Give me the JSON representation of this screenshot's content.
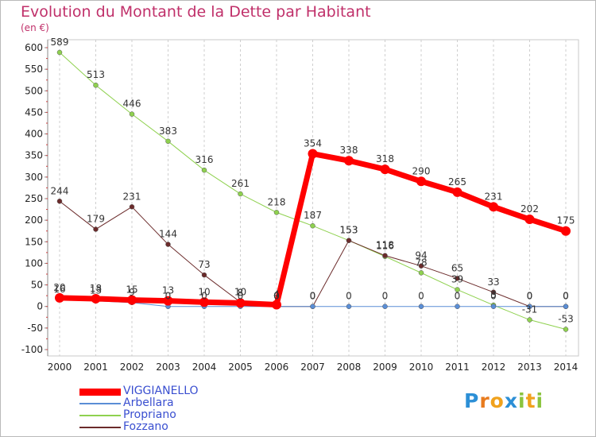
{
  "title": "Evolution du Montant de la Dette par Habitant",
  "unit_label": "(en €)",
  "brand": {
    "letters": [
      {
        "ch": "P",
        "color": "#2c8fd6"
      },
      {
        "ch": "r",
        "color": "#e87b1e"
      },
      {
        "ch": "o",
        "color": "#f0a21d"
      },
      {
        "ch": "x",
        "color": "#2c8fd6"
      },
      {
        "ch": "i",
        "color": "#8bc43f"
      },
      {
        "ch": "t",
        "color": "#f0a21d"
      },
      {
        "ch": "i",
        "color": "#8bc43f"
      }
    ]
  },
  "chart_data": {
    "type": "line",
    "x": [
      "2000",
      "2001",
      "2002",
      "2003",
      "2004",
      "2005",
      "2006",
      "2007",
      "2008",
      "2009",
      "2010",
      "2011",
      "2012",
      "2013",
      "2014"
    ],
    "ylim": [
      -100,
      600
    ],
    "yticks": [
      -100,
      -50,
      0,
      50,
      100,
      150,
      200,
      250,
      300,
      350,
      400,
      450,
      500,
      550,
      600
    ],
    "grid": {
      "horizontal": false,
      "vertical": true
    },
    "legend_position": "bottom-left",
    "series": [
      {
        "name": "Propriano",
        "color": "#8fd14f",
        "width": 1,
        "marker": 3,
        "values": [
          589,
          513,
          446,
          383,
          316,
          261,
          218,
          187,
          153,
          116,
          78,
          39,
          3,
          -31,
          -53
        ],
        "labels": [
          "589",
          "513",
          "446",
          "383",
          "316",
          "261",
          "218",
          "187",
          "153",
          "116",
          "78",
          "39",
          "3",
          "-31",
          "-53"
        ]
      },
      {
        "name": "Fozzano",
        "color": "#6b2b2b",
        "width": 1,
        "marker": 3,
        "values": [
          244,
          179,
          231,
          144,
          73,
          10,
          0,
          0,
          153,
          118,
          94,
          65,
          33,
          0,
          0
        ],
        "labels": [
          "244",
          "179",
          "231",
          "144",
          "73",
          "10",
          "0",
          "0",
          "153",
          "118",
          "94",
          "65",
          "33",
          "0",
          "0"
        ]
      },
      {
        "name": "Arbellara",
        "color": "#5a8ed6",
        "width": 1,
        "marker": 3,
        "values": [
          16,
          13,
          9,
          0,
          0,
          0,
          0,
          0,
          0,
          0,
          0,
          0,
          0,
          0,
          0
        ],
        "labels": [
          "16",
          "13",
          "9",
          "0",
          "0",
          "0",
          "0",
          "0",
          "0",
          "0",
          "0",
          "0",
          "0",
          "0",
          "0"
        ]
      },
      {
        "name": "VIGGIANELLO",
        "color": "#ff0000",
        "width": 7,
        "marker": 6,
        "values": [
          20,
          18,
          15,
          13,
          10,
          8,
          4,
          354,
          338,
          318,
          290,
          265,
          231,
          202,
          175
        ],
        "labels": [
          "20",
          "18",
          "15",
          "13",
          "10",
          "8",
          "4",
          "354",
          "338",
          "318",
          "290",
          "265",
          "231",
          "202",
          "175"
        ]
      }
    ],
    "legend_order": [
      "VIGGIANELLO",
      "Arbellara",
      "Propriano",
      "Fozzano"
    ]
  }
}
